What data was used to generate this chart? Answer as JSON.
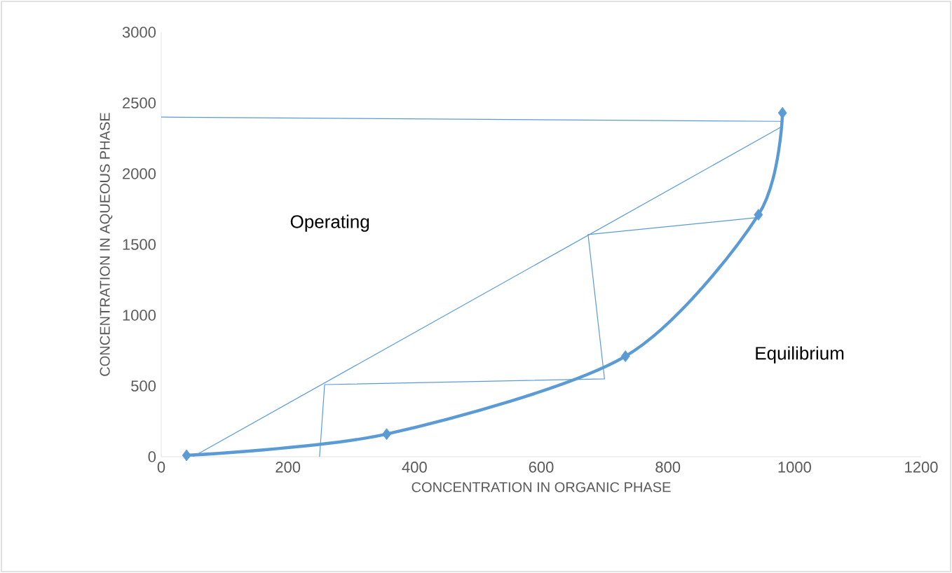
{
  "chart_data": {
    "type": "line",
    "xlabel": "CONCENTRATION IN ORGANIC PHASE",
    "ylabel": "CONCENTRATION IN AQUEOUS PHASE",
    "xlim": [
      0,
      1200
    ],
    "ylim": [
      0,
      3000
    ],
    "xticks": [
      0,
      200,
      400,
      600,
      800,
      1000,
      1200
    ],
    "yticks": [
      0,
      500,
      1000,
      1500,
      2000,
      2500,
      3000
    ],
    "series": [
      {
        "color": "#5b9bd5",
        "x": [
          40,
          356,
          733,
          943,
          981
        ],
        "values": [
          10,
          160,
          710,
          1710,
          2430
        ],
        "marker": "diamond"
      },
      {
        "color": "#5b9bd5",
        "x": [
          50,
          979
        ],
        "values": [
          0,
          2330
        ],
        "marker": "none"
      },
      {
        "color": "#5b9bd5",
        "x": [
          0,
          979
        ],
        "values": [
          2400,
          2370
        ],
        "marker": "none"
      },
      {
        "color": "#5b9bd5",
        "x": [
          941,
          674,
          700,
          258,
          250
        ],
        "values": [
          1690,
          1570,
          550,
          510,
          0
        ],
        "marker": "none"
      }
    ],
    "annotations": [
      "Operating",
      "Equilibrium"
    ]
  }
}
